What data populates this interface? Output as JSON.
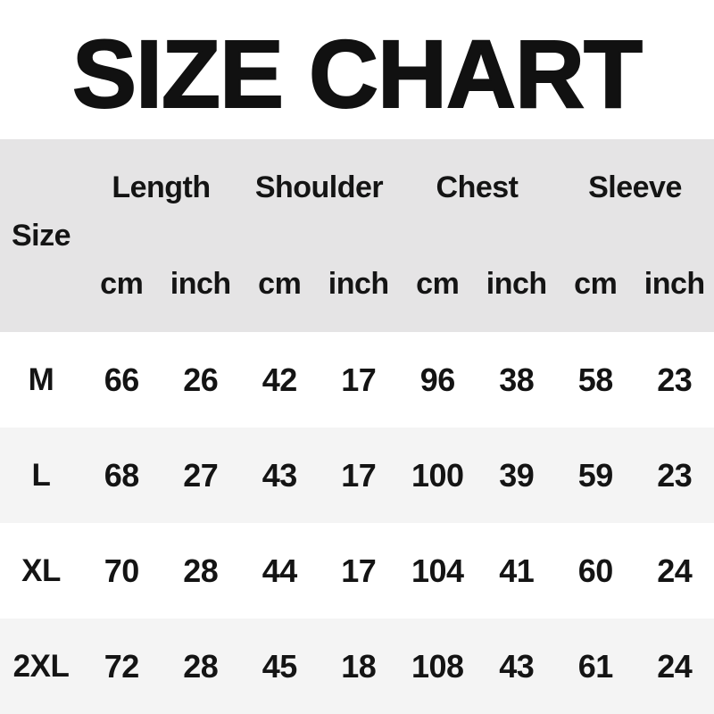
{
  "title": "SIZE CHART",
  "table": {
    "size_label": "Size",
    "groups": [
      {
        "label": "Length"
      },
      {
        "label": "Shoulder"
      },
      {
        "label": "Chest"
      },
      {
        "label": "Sleeve"
      }
    ],
    "units": [
      "cm",
      "inch"
    ],
    "rows": [
      {
        "size": "M",
        "values": [
          "66",
          "26",
          "42",
          "17",
          "96",
          "38",
          "58",
          "23"
        ]
      },
      {
        "size": "L",
        "values": [
          "68",
          "27",
          "43",
          "17",
          "100",
          "39",
          "59",
          "23"
        ]
      },
      {
        "size": "XL",
        "values": [
          "70",
          "28",
          "44",
          "17",
          "104",
          "41",
          "60",
          "24"
        ]
      },
      {
        "size": "2XL",
        "values": [
          "72",
          "28",
          "45",
          "18",
          "108",
          "43",
          "61",
          "24"
        ]
      }
    ]
  },
  "colors": {
    "header_bg": "#e5e4e5",
    "row_alt_bg": "#f4f4f4",
    "text": "#141414",
    "background": "#ffffff"
  },
  "chart_data": {
    "type": "table",
    "title": "SIZE CHART",
    "columns": [
      "Size",
      "Length cm",
      "Length inch",
      "Shoulder cm",
      "Shoulder inch",
      "Chest cm",
      "Chest inch",
      "Sleeve cm",
      "Sleeve inch"
    ],
    "rows": [
      [
        "M",
        66,
        26,
        42,
        17,
        96,
        38,
        58,
        23
      ],
      [
        "L",
        68,
        27,
        43,
        17,
        100,
        39,
        59,
        23
      ],
      [
        "XL",
        70,
        28,
        44,
        17,
        104,
        41,
        60,
        24
      ],
      [
        "2XL",
        72,
        28,
        45,
        18,
        108,
        43,
        61,
        24
      ]
    ],
    "layout": {
      "header_band": "grouped two-level header",
      "row_striping": "white / light gray alternating"
    }
  }
}
